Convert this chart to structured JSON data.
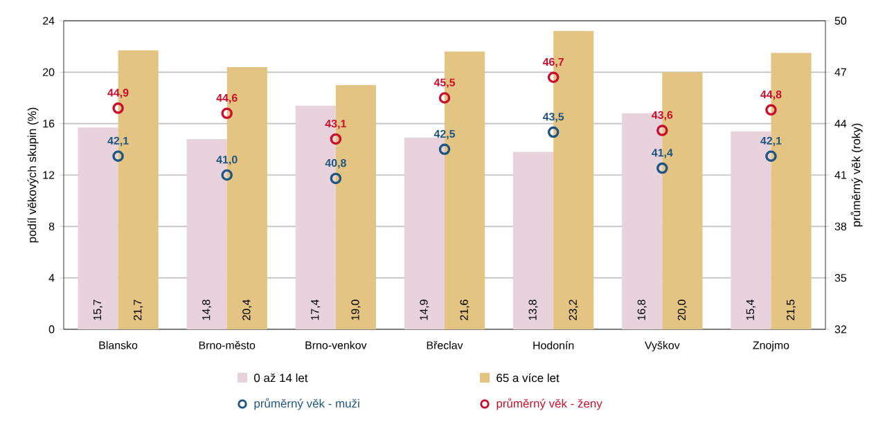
{
  "chart_data": {
    "type": "bar",
    "categories": [
      "Blansko",
      "Brno-město",
      "Brno-venkov",
      "Břeclav",
      "Hodonín",
      "Vyškov",
      "Znojmo"
    ],
    "ylabel": "podíl věkových skupin (%)",
    "y2label": "průměrný věk (roky)",
    "ylim": [
      0,
      24
    ],
    "yticks": [
      0,
      4,
      8,
      12,
      16,
      20,
      24
    ],
    "y2lim": [
      32,
      50
    ],
    "y2ticks": [
      32,
      35,
      38,
      41,
      44,
      47,
      50
    ],
    "grid": "y",
    "legend": "bottom",
    "series": [
      {
        "name": "0 až 14 let",
        "color": "#e8d3dc",
        "values": [
          15.7,
          14.8,
          17.4,
          14.9,
          13.8,
          16.8,
          15.4
        ],
        "value_labels": [
          "15,7",
          "14,8",
          "17,4",
          "14,9",
          "13,8",
          "16,8",
          "15,4"
        ]
      },
      {
        "name": "65 a více let",
        "color": "#e3c482",
        "values": [
          21.7,
          20.4,
          19.0,
          21.6,
          23.2,
          20.0,
          21.5
        ],
        "value_labels": [
          "21,7",
          "20,4",
          "19,0",
          "21,6",
          "23,2",
          "20,0",
          "21,5"
        ]
      },
      {
        "name": "průměrný věk - muži",
        "type": "scatter",
        "axis": "y2",
        "marker": "circle",
        "color": "#1f5582",
        "values": [
          42.1,
          41.0,
          40.8,
          42.5,
          43.5,
          41.4,
          42.1
        ],
        "value_labels": [
          "42,1",
          "41,0",
          "40,8",
          "42,5",
          "43,5",
          "41,4",
          "42,1"
        ]
      },
      {
        "name": "průměrný věk - ženy",
        "type": "scatter",
        "axis": "y2",
        "marker": "circle",
        "color": "#c8102e",
        "values": [
          44.9,
          44.6,
          43.1,
          45.5,
          46.7,
          43.6,
          44.8
        ],
        "value_labels": [
          "44,9",
          "44,6",
          "43,1",
          "45,5",
          "46,7",
          "43,6",
          "44,8"
        ]
      }
    ]
  }
}
